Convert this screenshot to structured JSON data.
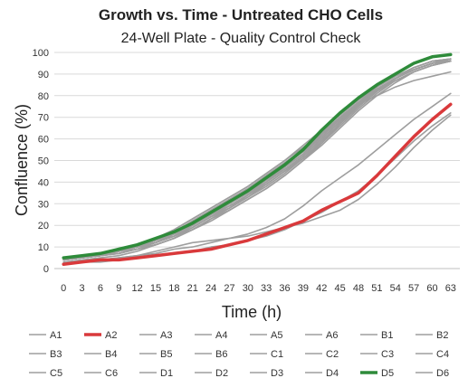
{
  "chart_data": {
    "type": "line",
    "title": "Growth vs. Time - Untreated CHO Cells",
    "subtitle": "24-Well Plate - Quality Control Check",
    "xlabel": "Time (h)",
    "ylabel": "Confluence (%)",
    "ylim": [
      0,
      100
    ],
    "yticks": [
      0,
      10,
      20,
      30,
      40,
      50,
      60,
      70,
      80,
      90,
      100
    ],
    "x": [
      0,
      3,
      6,
      9,
      12,
      15,
      18,
      21,
      24,
      27,
      30,
      33,
      36,
      39,
      42,
      45,
      48,
      51,
      54,
      57,
      60,
      63
    ],
    "grid": true,
    "legend_position": "bottom",
    "colors": {
      "default": "#9e9e9e",
      "A2": "#d9393b",
      "D5": "#2e8b3a"
    },
    "series": [
      {
        "name": "A1",
        "values": [
          4,
          5,
          6,
          8,
          10,
          12,
          16,
          21,
          26,
          30,
          35,
          41,
          47,
          53,
          62,
          70,
          77,
          84,
          89,
          93,
          96,
          97
        ]
      },
      {
        "name": "A2",
        "values": [
          2,
          3,
          4,
          4,
          5,
          6,
          7,
          8,
          9,
          11,
          13,
          16,
          19,
          22,
          27,
          31,
          35,
          43,
          52,
          61,
          69,
          76
        ]
      },
      {
        "name": "A3",
        "values": [
          4,
          5,
          6,
          7,
          9,
          11,
          14,
          18,
          23,
          27,
          32,
          37,
          43,
          50,
          58,
          67,
          75,
          82,
          88,
          93,
          96,
          97
        ]
      },
      {
        "name": "A4",
        "values": [
          5,
          6,
          7,
          9,
          11,
          14,
          18,
          23,
          28,
          33,
          38,
          44,
          50,
          57,
          64,
          71,
          78,
          84,
          89,
          93,
          96,
          97
        ]
      },
      {
        "name": "A5",
        "values": [
          4,
          5,
          6,
          8,
          10,
          13,
          17,
          22,
          27,
          32,
          37,
          43,
          49,
          55,
          63,
          70,
          77,
          83,
          88,
          92,
          95,
          97
        ]
      },
      {
        "name": "A6",
        "values": [
          4,
          5,
          6,
          8,
          10,
          12,
          15,
          19,
          24,
          28,
          33,
          38,
          44,
          51,
          59,
          67,
          75,
          82,
          88,
          92,
          95,
          96
        ]
      },
      {
        "name": "B1",
        "values": [
          5,
          6,
          7,
          9,
          11,
          13,
          17,
          22,
          27,
          32,
          37,
          42,
          48,
          54,
          62,
          69,
          76,
          83,
          88,
          92,
          95,
          96
        ]
      },
      {
        "name": "B2",
        "values": [
          2,
          3,
          3,
          4,
          5,
          6,
          7,
          8,
          10,
          11,
          13,
          15,
          18,
          22,
          26,
          31,
          36,
          43,
          51,
          59,
          66,
          72
        ]
      },
      {
        "name": "B3",
        "values": [
          4,
          5,
          6,
          8,
          10,
          12,
          16,
          20,
          25,
          30,
          35,
          40,
          46,
          52,
          60,
          68,
          76,
          83,
          88,
          92,
          95,
          97
        ]
      },
      {
        "name": "B4",
        "values": [
          4,
          5,
          6,
          7,
          9,
          11,
          14,
          19,
          24,
          28,
          33,
          39,
          45,
          51,
          59,
          67,
          75,
          82,
          88,
          92,
          95,
          96
        ]
      },
      {
        "name": "B5",
        "values": [
          5,
          6,
          7,
          9,
          11,
          14,
          18,
          23,
          28,
          33,
          38,
          44,
          50,
          56,
          63,
          70,
          77,
          83,
          88,
          92,
          95,
          97
        ]
      },
      {
        "name": "B6",
        "values": [
          4,
          5,
          6,
          8,
          10,
          12,
          15,
          20,
          25,
          29,
          34,
          39,
          45,
          51,
          58,
          66,
          74,
          81,
          87,
          91,
          94,
          96
        ]
      },
      {
        "name": "C1",
        "values": [
          3,
          4,
          5,
          6,
          8,
          11,
          14,
          18,
          23,
          28,
          34,
          40,
          47,
          55,
          63,
          70,
          76,
          80,
          84,
          87,
          89,
          91
        ]
      },
      {
        "name": "C2",
        "values": [
          4,
          5,
          6,
          8,
          10,
          13,
          17,
          21,
          26,
          31,
          36,
          42,
          48,
          55,
          63,
          70,
          77,
          83,
          88,
          92,
          95,
          97
        ]
      },
      {
        "name": "C3",
        "values": [
          2,
          3,
          4,
          5,
          6,
          7,
          9,
          10,
          12,
          14,
          16,
          19,
          23,
          29,
          36,
          42,
          48,
          55,
          62,
          69,
          75,
          81
        ]
      },
      {
        "name": "C4",
        "values": [
          4,
          5,
          6,
          8,
          10,
          13,
          16,
          21,
          26,
          31,
          36,
          41,
          47,
          53,
          61,
          69,
          76,
          83,
          88,
          92,
          95,
          96
        ]
      },
      {
        "name": "C5",
        "values": [
          5,
          6,
          7,
          9,
          11,
          13,
          16,
          20,
          25,
          29,
          34,
          40,
          46,
          52,
          60,
          68,
          76,
          82,
          88,
          92,
          95,
          97
        ]
      },
      {
        "name": "C6",
        "values": [
          4,
          5,
          6,
          7,
          9,
          11,
          14,
          18,
          22,
          27,
          32,
          37,
          43,
          50,
          57,
          65,
          73,
          80,
          86,
          91,
          94,
          96
        ]
      },
      {
        "name": "D1",
        "values": [
          2,
          3,
          4,
          5,
          6,
          8,
          10,
          12,
          13,
          14,
          15,
          17,
          19,
          21,
          24,
          27,
          32,
          39,
          47,
          56,
          64,
          71
        ]
      },
      {
        "name": "D2",
        "values": [
          4,
          5,
          6,
          8,
          10,
          12,
          16,
          21,
          26,
          30,
          35,
          41,
          47,
          53,
          61,
          69,
          77,
          83,
          88,
          92,
          95,
          97
        ]
      },
      {
        "name": "D3",
        "values": [
          4,
          5,
          6,
          8,
          9,
          12,
          15,
          19,
          24,
          29,
          34,
          39,
          45,
          52,
          60,
          68,
          75,
          82,
          87,
          91,
          94,
          96
        ]
      },
      {
        "name": "D4",
        "values": [
          5,
          6,
          7,
          9,
          11,
          14,
          17,
          22,
          27,
          32,
          37,
          43,
          49,
          55,
          62,
          70,
          77,
          83,
          88,
          92,
          95,
          97
        ]
      },
      {
        "name": "D5",
        "values": [
          5,
          6,
          7,
          9,
          11,
          14,
          17,
          21,
          26,
          31,
          36,
          42,
          48,
          55,
          64,
          72,
          79,
          85,
          90,
          95,
          98,
          99
        ]
      },
      {
        "name": "D6",
        "values": [
          4,
          5,
          6,
          8,
          10,
          12,
          15,
          20,
          25,
          29,
          34,
          40,
          46,
          52,
          60,
          68,
          76,
          82,
          88,
          92,
          95,
          96
        ]
      }
    ]
  }
}
